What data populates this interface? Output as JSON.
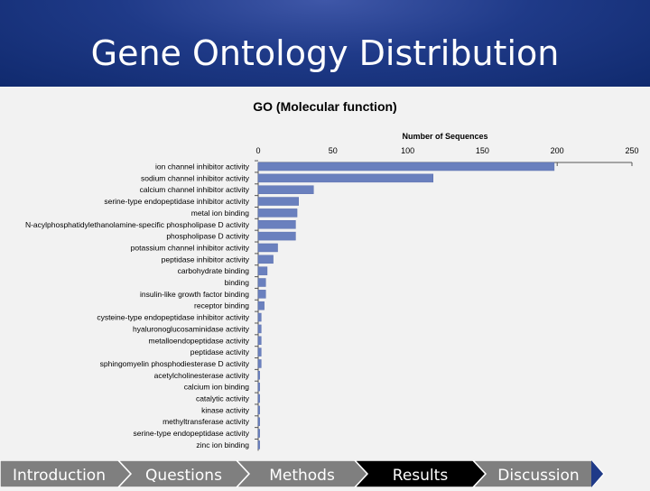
{
  "header": {
    "title": "Gene Ontology Distribution"
  },
  "nav": {
    "items": [
      "Introduction",
      "Questions",
      "Methods",
      "Results",
      "Discussion"
    ],
    "active": "Results"
  },
  "chart_data": {
    "type": "bar",
    "orientation": "horizontal",
    "title": "GO (Molecular function)",
    "xlabel": "Number of Sequences",
    "xlim": [
      0,
      250
    ],
    "xticks": [
      0,
      50,
      100,
      150,
      200,
      250
    ],
    "x_axis_position": "top",
    "grid": false,
    "bar_color": "#6a80be",
    "categories": [
      "ion channel inhibitor activity",
      "sodium channel inhibitor activity",
      "calcium channel inhibitor activity",
      "serine-type endopeptidase inhibitor activity",
      "metal ion binding",
      "N-acylphosphatidylethanolamine-specific phospholipase D activity",
      "phospholipase D activity",
      "potassium channel inhibitor activity",
      "peptidase inhibitor activity",
      "carbohydrate binding",
      "binding",
      "insulin-like growth factor binding",
      "receptor binding",
      "cysteine-type endopeptidase inhibitor activity",
      "hyaluronoglucosaminidase activity",
      "metalloendopeptidase activity",
      "peptidase activity",
      "sphingomyelin phosphodiesterase D activity",
      "acetylcholinesterase activity",
      "calcium ion binding",
      "catalytic activity",
      "kinase activity",
      "methyltransferase activity",
      "serine-type endopeptidase activity",
      "zinc ion binding"
    ],
    "values": [
      198,
      117,
      37,
      27,
      26,
      25,
      25,
      13,
      10,
      6,
      5,
      5,
      4,
      2,
      2,
      2,
      2,
      2,
      1,
      1,
      1,
      1,
      1,
      1,
      1
    ]
  }
}
